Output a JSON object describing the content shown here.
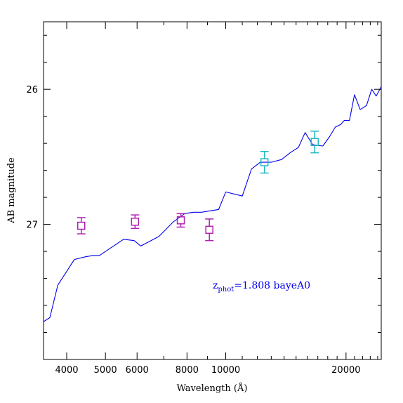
{
  "chart_data": {
    "type": "line",
    "xscale": "log",
    "yscale": "inverted",
    "xlabel": "Wavelength (Å)",
    "ylabel": "AB magnitude",
    "xlim": [
      3500,
      24500
    ],
    "ylim": [
      28.0,
      25.5
    ],
    "x_ticks": [
      4000,
      5000,
      6000,
      8000,
      10000,
      20000
    ],
    "x_tick_labels": [
      "4000",
      "5000",
      "6000",
      "8000",
      "10000",
      "20000"
    ],
    "y_ticks": [
      26,
      27
    ],
    "y_tick_labels": [
      "26",
      "27"
    ],
    "grid": false,
    "annotation": {
      "text_main": "z",
      "text_sub": "phot",
      "text_rest": "=1.808 bayeA0",
      "color": "#0000ee"
    },
    "series": [
      {
        "kind": "line",
        "color": "#0000ee",
        "x": [
          3500,
          3630,
          3800,
          4180,
          4450,
          4650,
          4830,
          5550,
          5900,
          6130,
          6800,
          7400,
          7900,
          8300,
          8700,
          9100,
          9600,
          10000,
          11000,
          11600,
          12200,
          13000,
          13800,
          14500,
          15200,
          15800,
          16500,
          17500,
          18200,
          18800,
          19400,
          19800,
          20400,
          21000,
          21700,
          22500,
          23200,
          23800,
          24500
        ],
        "y": [
          27.72,
          27.69,
          27.45,
          27.26,
          27.24,
          27.23,
          27.23,
          27.11,
          27.12,
          27.16,
          27.09,
          26.98,
          26.92,
          26.91,
          26.91,
          26.9,
          26.89,
          26.76,
          26.79,
          26.59,
          26.54,
          26.54,
          26.52,
          26.47,
          26.43,
          26.32,
          26.41,
          26.42,
          26.35,
          26.28,
          26.26,
          26.23,
          26.23,
          26.04,
          26.15,
          26.12,
          26.0,
          26.05,
          25.98
        ]
      },
      {
        "kind": "errorbar",
        "color": "#b020b0",
        "x": [
          4350,
          5930,
          7720,
          9100
        ],
        "y": [
          27.01,
          26.98,
          26.97,
          27.04
        ],
        "yerr": [
          0.06,
          0.05,
          0.05,
          0.08
        ]
      },
      {
        "kind": "errorbar",
        "color": "#20b8c0",
        "x": [
          12500,
          16700
        ],
        "y": [
          26.54,
          26.39
        ],
        "yerr": [
          0.08,
          0.08
        ]
      }
    ]
  }
}
